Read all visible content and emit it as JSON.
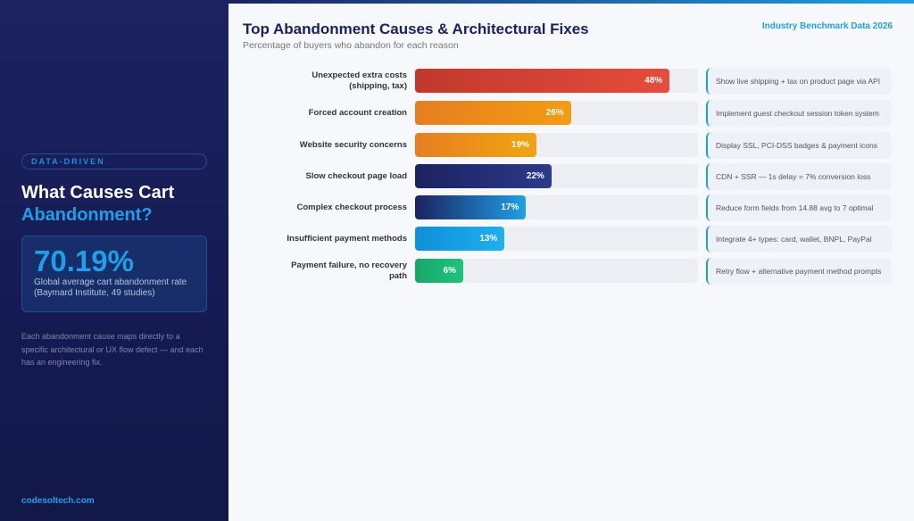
{
  "sidebar": {
    "tag": "DATA-DRIVEN",
    "title_line1": "What Causes Cart",
    "title_line2": "Abandonment?",
    "stat_value": "70.19%",
    "stat_label1": "Global average cart abandonment rate",
    "stat_label2": "(Baymard Institute, 49 studies)",
    "description": "Each abandonment cause maps directly to a specific architectural or UX flow defect — and each has an engineering fix.",
    "brand": "codesoltech.com"
  },
  "header": {
    "title": "Top Abandonment Causes & Architectural Fixes",
    "subtitle": "Percentage of buyers who abandon for each reason",
    "benchmark": "Industry Benchmark Data 2026"
  },
  "chart_data": {
    "type": "bar",
    "orientation": "horizontal",
    "unit": "%",
    "categories": [
      "Unexpected extra costs (shipping, tax)",
      "Forced account creation",
      "Website security concerns",
      "Slow checkout page load",
      "Complex checkout process",
      "Insufficient payment methods",
      "Payment failure, no recovery path"
    ],
    "values": [
      48,
      26,
      19,
      22,
      17,
      13,
      6
    ],
    "labels": [
      "48%",
      "26%",
      "19%",
      "22%",
      "17%",
      "13%",
      "6%"
    ],
    "colors": [
      [
        "#c0392b",
        "#e74c3c"
      ],
      [
        "#e67e22",
        "#f39c12"
      ],
      [
        "#e67e22",
        "#f1a510"
      ],
      [
        "#1c2260",
        "#2c3a8a"
      ],
      [
        "#1c2260",
        "#1ea0e6"
      ],
      [
        "#0f8fd8",
        "#1eb0ef"
      ],
      [
        "#16a76a",
        "#20c27c"
      ]
    ],
    "fixes": [
      "Show live shipping + tax on product page via API",
      "Implement guest checkout session token system",
      "Display SSL, PCI-DSS badges & payment icons",
      "CDN + SSR — 1s delay = 7% conversion loss",
      "Reduce form fields from 14.88 avg to 7 optimal",
      "Integrate 4+ types: card, wallet, BNPL, PayPal",
      "Retry flow + alternative payment method prompts"
    ]
  }
}
